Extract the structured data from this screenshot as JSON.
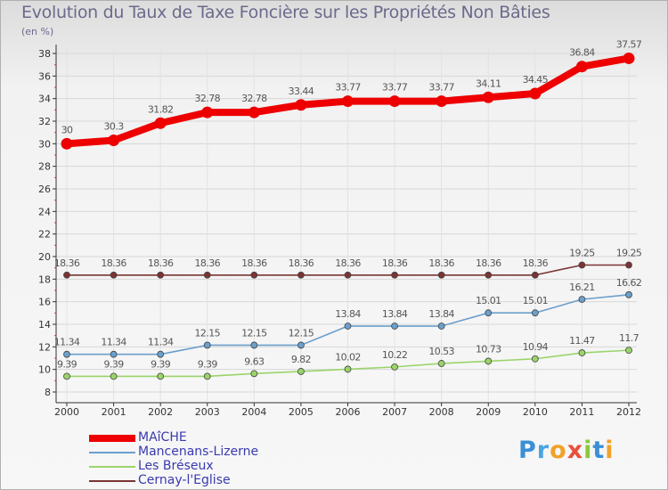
{
  "chart_data": {
    "type": "line",
    "title": "Evolution du Taux de Taxe Foncière sur les Propriétés Non Bâties",
    "ylabel": "(en %)",
    "xlabel": "",
    "ylim": [
      8,
      38
    ],
    "yticks": [
      8,
      10,
      12,
      14,
      16,
      18,
      20,
      22,
      24,
      26,
      28,
      30,
      32,
      34,
      36,
      38
    ],
    "categories": [
      "2000",
      "2001",
      "2002",
      "2003",
      "2004",
      "2005",
      "2006",
      "2007",
      "2008",
      "2009",
      "2010",
      "2011",
      "2012"
    ],
    "series": [
      {
        "name": "MAîCHE",
        "color": "#ee0000",
        "values": [
          30,
          30.3,
          31.82,
          32.78,
          32.78,
          33.44,
          33.77,
          33.77,
          33.77,
          34.11,
          34.45,
          36.84,
          37.57
        ],
        "labels": [
          "30",
          "30.3",
          "31.82",
          "32.78",
          "32.78",
          "33.44",
          "33.77",
          "33.77",
          "33.77",
          "34.11",
          "34.45",
          "36.84",
          "37.57"
        ]
      },
      {
        "name": "Mancenans-Lizerne",
        "color": "#6b9fcc",
        "values": [
          11.34,
          11.34,
          11.34,
          12.15,
          12.15,
          12.15,
          13.84,
          13.84,
          13.84,
          15.01,
          15.01,
          16.21,
          16.62
        ],
        "labels": [
          "11.34",
          "11.34",
          "11.34",
          "12.15",
          "12.15",
          "12.15",
          "13.84",
          "13.84",
          "13.84",
          "15.01",
          "15.01",
          "16.21",
          "16.62"
        ]
      },
      {
        "name": "Les Bréseux",
        "color": "#9ad46a",
        "values": [
          9.39,
          9.39,
          9.39,
          9.39,
          9.63,
          9.82,
          10.02,
          10.22,
          10.53,
          10.73,
          10.94,
          11.47,
          11.7
        ],
        "labels": [
          "9.39",
          "9.39",
          "9.39",
          "9.39",
          "9.63",
          "9.82",
          "10.02",
          "10.22",
          "10.53",
          "10.73",
          "10.94",
          "11.47",
          "11.7"
        ]
      },
      {
        "name": "Cernay-l'Eglise",
        "color": "#7a3434",
        "values": [
          18.36,
          18.36,
          18.36,
          18.36,
          18.36,
          18.36,
          18.36,
          18.36,
          18.36,
          18.36,
          18.36,
          19.25,
          19.25
        ],
        "labels": [
          "18.36",
          "18.36",
          "18.36",
          "18.36",
          "18.36",
          "18.36",
          "18.36",
          "18.36",
          "18.36",
          "18.36",
          "18.36",
          "19.25",
          "19.25"
        ]
      }
    ],
    "legend_position": "bottom-left"
  },
  "logo": {
    "letters": [
      "P",
      "r",
      "o",
      "x",
      "i",
      "t",
      "i"
    ]
  }
}
